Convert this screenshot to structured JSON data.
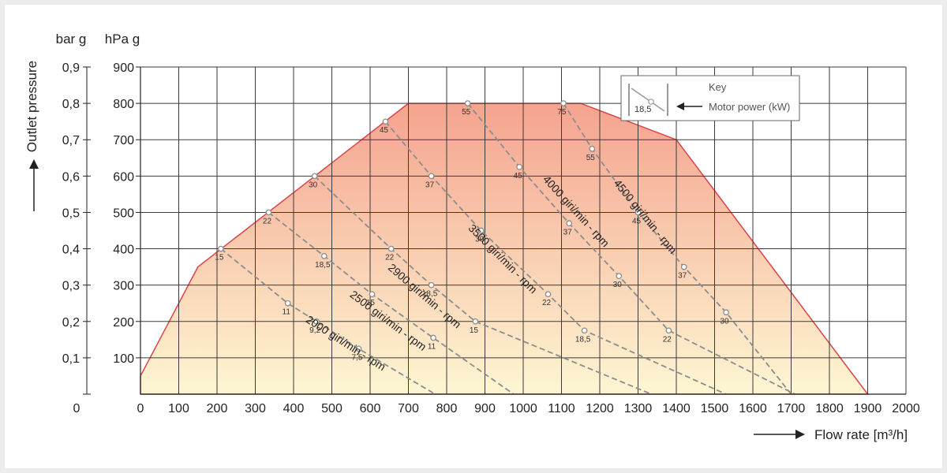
{
  "chart_data": {
    "type": "line",
    "xlabel": "Flow rate [m³/h]",
    "ylabel": "Outlet pressure",
    "y_unit_left": "bar g",
    "y_unit_right": "hPa g",
    "x_ticks": [
      0,
      100,
      200,
      300,
      400,
      500,
      600,
      700,
      800,
      900,
      1000,
      1100,
      1200,
      1300,
      1400,
      1500,
      1600,
      1700,
      1800,
      1900,
      2000
    ],
    "x_tick_labels": [
      "0",
      "100",
      "200",
      "300",
      "400",
      "500",
      "600",
      "700",
      "800",
      "900",
      "1000",
      "1100",
      "1200",
      "1300",
      "1400",
      "1500",
      "1600",
      "1700",
      "1800",
      "1900",
      "2000"
    ],
    "y_ticks_hpa": [
      100,
      200,
      300,
      400,
      500,
      600,
      700,
      800,
      900
    ],
    "y_tick_labels_hpa": [
      "100",
      "200",
      "300",
      "400",
      "500",
      "600",
      "700",
      "800",
      "900"
    ],
    "y_tick_labels_bar": [
      "0,1",
      "0,2",
      "0,3",
      "0,4",
      "0,5",
      "0,6",
      "0,7",
      "0,8",
      "0,9"
    ],
    "y_zero_label": "0",
    "xlim": [
      0,
      2000
    ],
    "ylim": [
      0,
      900
    ],
    "grid": true,
    "envelope": [
      [
        0,
        50
      ],
      [
        150,
        350
      ],
      [
        700,
        800
      ],
      [
        1150,
        800
      ],
      [
        1400,
        700
      ],
      [
        1900,
        0
      ],
      [
        0,
        0
      ]
    ],
    "colors": {
      "envelope_top": "#f5a38f",
      "envelope_bottom": "#fdf6d2",
      "envelope_stroke": "#d9434a",
      "curve": "#8c8c8c",
      "grid": "#3a3a3a"
    },
    "series": [
      {
        "name": "2000 giri/min - rpm",
        "label_at": [
          430,
          200
        ],
        "x": [
          210,
          385,
          460,
          570,
          770
        ],
        "y": [
          400,
          250,
          200,
          125,
          0
        ],
        "power": [
          "15",
          "11",
          "9,2",
          "7,5",
          ""
        ]
      },
      {
        "name": "2500 giri/min - rpm",
        "label_at": [
          545,
          270
        ],
        "x": [
          335,
          480,
          605,
          765,
          975
        ],
        "y": [
          500,
          380,
          275,
          155,
          0
        ],
        "power": [
          "22",
          "18,5",
          "15",
          "11",
          ""
        ]
      },
      {
        "name": "2900 giri/min - rpm",
        "label_at": [
          645,
          345
        ],
        "x": [
          455,
          655,
          760,
          875,
          1335
        ],
        "y": [
          600,
          400,
          300,
          200,
          0
        ],
        "power": [
          "30",
          "22",
          "18,5",
          "15",
          ""
        ]
      },
      {
        "name": "3500 giri/min - rpm",
        "label_at": [
          855,
          455
        ],
        "x": [
          640,
          760,
          890,
          1065,
          1160,
          1530
        ],
        "y": [
          750,
          600,
          450,
          275,
          175,
          0
        ],
        "power": [
          "45",
          "37",
          "30",
          "22",
          "18,5",
          ""
        ]
      },
      {
        "name": "4000 giri/min - rpm",
        "label_at": [
          1050,
          590
        ],
        "x": [
          855,
          990,
          1120,
          1250,
          1380,
          1710
        ],
        "y": [
          800,
          625,
          470,
          325,
          175,
          0
        ],
        "power": [
          "55",
          "45",
          "37",
          "30",
          "22",
          ""
        ]
      },
      {
        "name": "4500 giri/min - rpm",
        "label_at": [
          1235,
          580
        ],
        "x": [
          1105,
          1180,
          1300,
          1420,
          1530,
          1700
        ],
        "y": [
          800,
          675,
          500,
          350,
          225,
          0
        ],
        "power": [
          "75",
          "55",
          "45",
          "37",
          "30",
          ""
        ]
      }
    ],
    "key": {
      "title": "Key",
      "sample_value": "18,5",
      "label": "Motor power (kW)"
    }
  }
}
